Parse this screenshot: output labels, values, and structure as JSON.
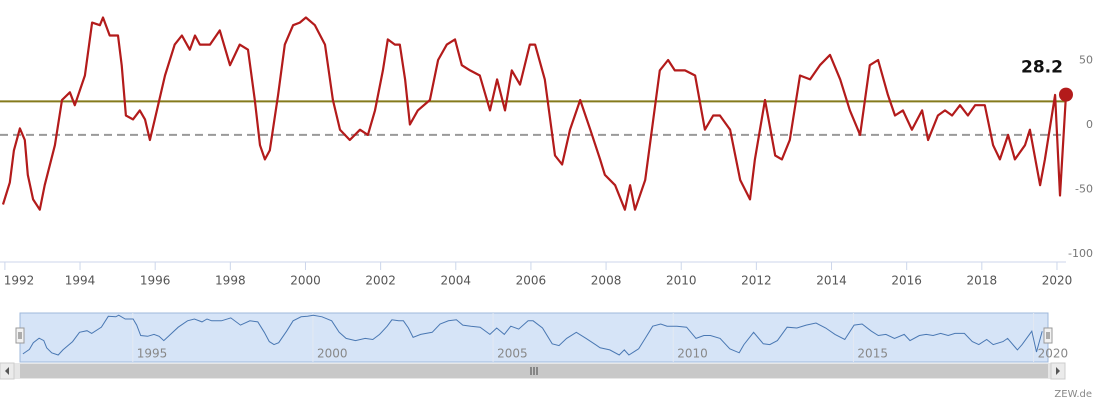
{
  "chart_data": {
    "type": "line",
    "color": "#b31b1b",
    "x": [
      1991.95,
      1992.13,
      1992.24,
      1992.4,
      1992.53,
      1992.61,
      1992.75,
      1992.93,
      1993.06,
      1993.33,
      1993.52,
      1993.73,
      1993.86,
      1994.13,
      1994.32,
      1994.53,
      1994.61,
      1994.79,
      1995.01,
      1995.11,
      1995.22,
      1995.41,
      1995.59,
      1995.73,
      1995.86,
      1995.99,
      1996.26,
      1996.52,
      1996.71,
      1996.92,
      1997.06,
      1997.19,
      1997.46,
      1997.72,
      1997.99,
      1998.25,
      1998.47,
      1998.65,
      1998.79,
      1998.92,
      1999.05,
      1999.27,
      1999.45,
      1999.67,
      1999.85,
      2000.01,
      2000.25,
      2000.52,
      2000.73,
      2000.92,
      2001.18,
      2001.45,
      2001.66,
      2001.85,
      2002.06,
      2002.19,
      2002.38,
      2002.51,
      2002.65,
      2002.78,
      2002.99,
      2003.31,
      2003.53,
      2003.76,
      2003.98,
      2004.16,
      2004.38,
      2004.64,
      2004.91,
      2005.1,
      2005.31,
      2005.49,
      2005.71,
      2005.97,
      2006.11,
      2006.37,
      2006.64,
      2006.83,
      2007.04,
      2007.31,
      2007.58,
      2007.84,
      2007.97,
      2008.24,
      2008.5,
      2008.64,
      2008.77,
      2009.04,
      2009.22,
      2009.43,
      2009.65,
      2009.83,
      2010.1,
      2010.37,
      2010.63,
      2010.85,
      2011.03,
      2011.3,
      2011.57,
      2011.83,
      2011.96,
      2012.23,
      2012.5,
      2012.68,
      2012.89,
      2013.16,
      2013.43,
      2013.69,
      2013.96,
      2014.23,
      2014.49,
      2014.76,
      2015.02,
      2015.24,
      2015.5,
      2015.69,
      2015.9,
      2016.14,
      2016.41,
      2016.57,
      2016.83,
      2017.02,
      2017.21,
      2017.42,
      2017.63,
      2017.82,
      2018.08,
      2018.3,
      2018.48,
      2018.7,
      2018.88,
      2019.15,
      2019.28,
      2019.55,
      2019.68,
      2019.95,
      2020.08,
      2020.24
    ],
    "values": [
      -57,
      -40,
      -15,
      2,
      -7,
      -34,
      -53,
      -61,
      -42,
      -11,
      24,
      30,
      20,
      43,
      84,
      82,
      88,
      74,
      74,
      51,
      12,
      9,
      16,
      9,
      -7,
      9,
      43,
      67,
      74,
      63,
      74,
      67,
      67,
      78,
      51,
      67,
      63,
      24,
      -11,
      -22,
      -15,
      28,
      67,
      82,
      84,
      88,
      82,
      67,
      24,
      1,
      -7,
      1,
      -3,
      16,
      47,
      71,
      67,
      67,
      40,
      5,
      16,
      24,
      55,
      67,
      71,
      51,
      47,
      43,
      16,
      40,
      16,
      47,
      36,
      67,
      67,
      40,
      -19,
      -26,
      1,
      24,
      1,
      -22,
      -34,
      -42,
      -61,
      -42,
      -61,
      -38,
      1,
      47,
      55,
      47,
      47,
      43,
      1,
      12,
      12,
      1,
      -38,
      -53,
      -22,
      24,
      -19,
      -22,
      -7,
      43,
      40,
      51,
      59,
      40,
      16,
      -3,
      51,
      55,
      28,
      12,
      16,
      1,
      16,
      -7,
      12,
      16,
      12,
      20,
      12,
      20,
      20,
      -11,
      -22,
      -3,
      -22,
      -11,
      1,
      -42,
      -22,
      28,
      -50,
      28.2
    ],
    "xlim": [
      1991.87,
      2020.4
    ],
    "xticks": [
      1992,
      1994,
      1996,
      1998,
      2000,
      2002,
      2004,
      2006,
      2008,
      2010,
      2012,
      2014,
      2016,
      2018,
      2020
    ],
    "ylim": [
      -100,
      100
    ],
    "yticks": [
      -100,
      -50,
      0,
      50
    ],
    "plot_lines": [
      {
        "value": 23,
        "color": "#857a1c",
        "dash": false
      },
      {
        "value": -3,
        "color": "#9a9a9a",
        "dash": true
      }
    ],
    "navigator": {
      "xticks": [
        1995,
        2000,
        2005,
        2010,
        2015,
        2020
      ],
      "color": "#4a78b3",
      "fill": "#d6e4f7"
    },
    "credits": "ZEW.de"
  }
}
